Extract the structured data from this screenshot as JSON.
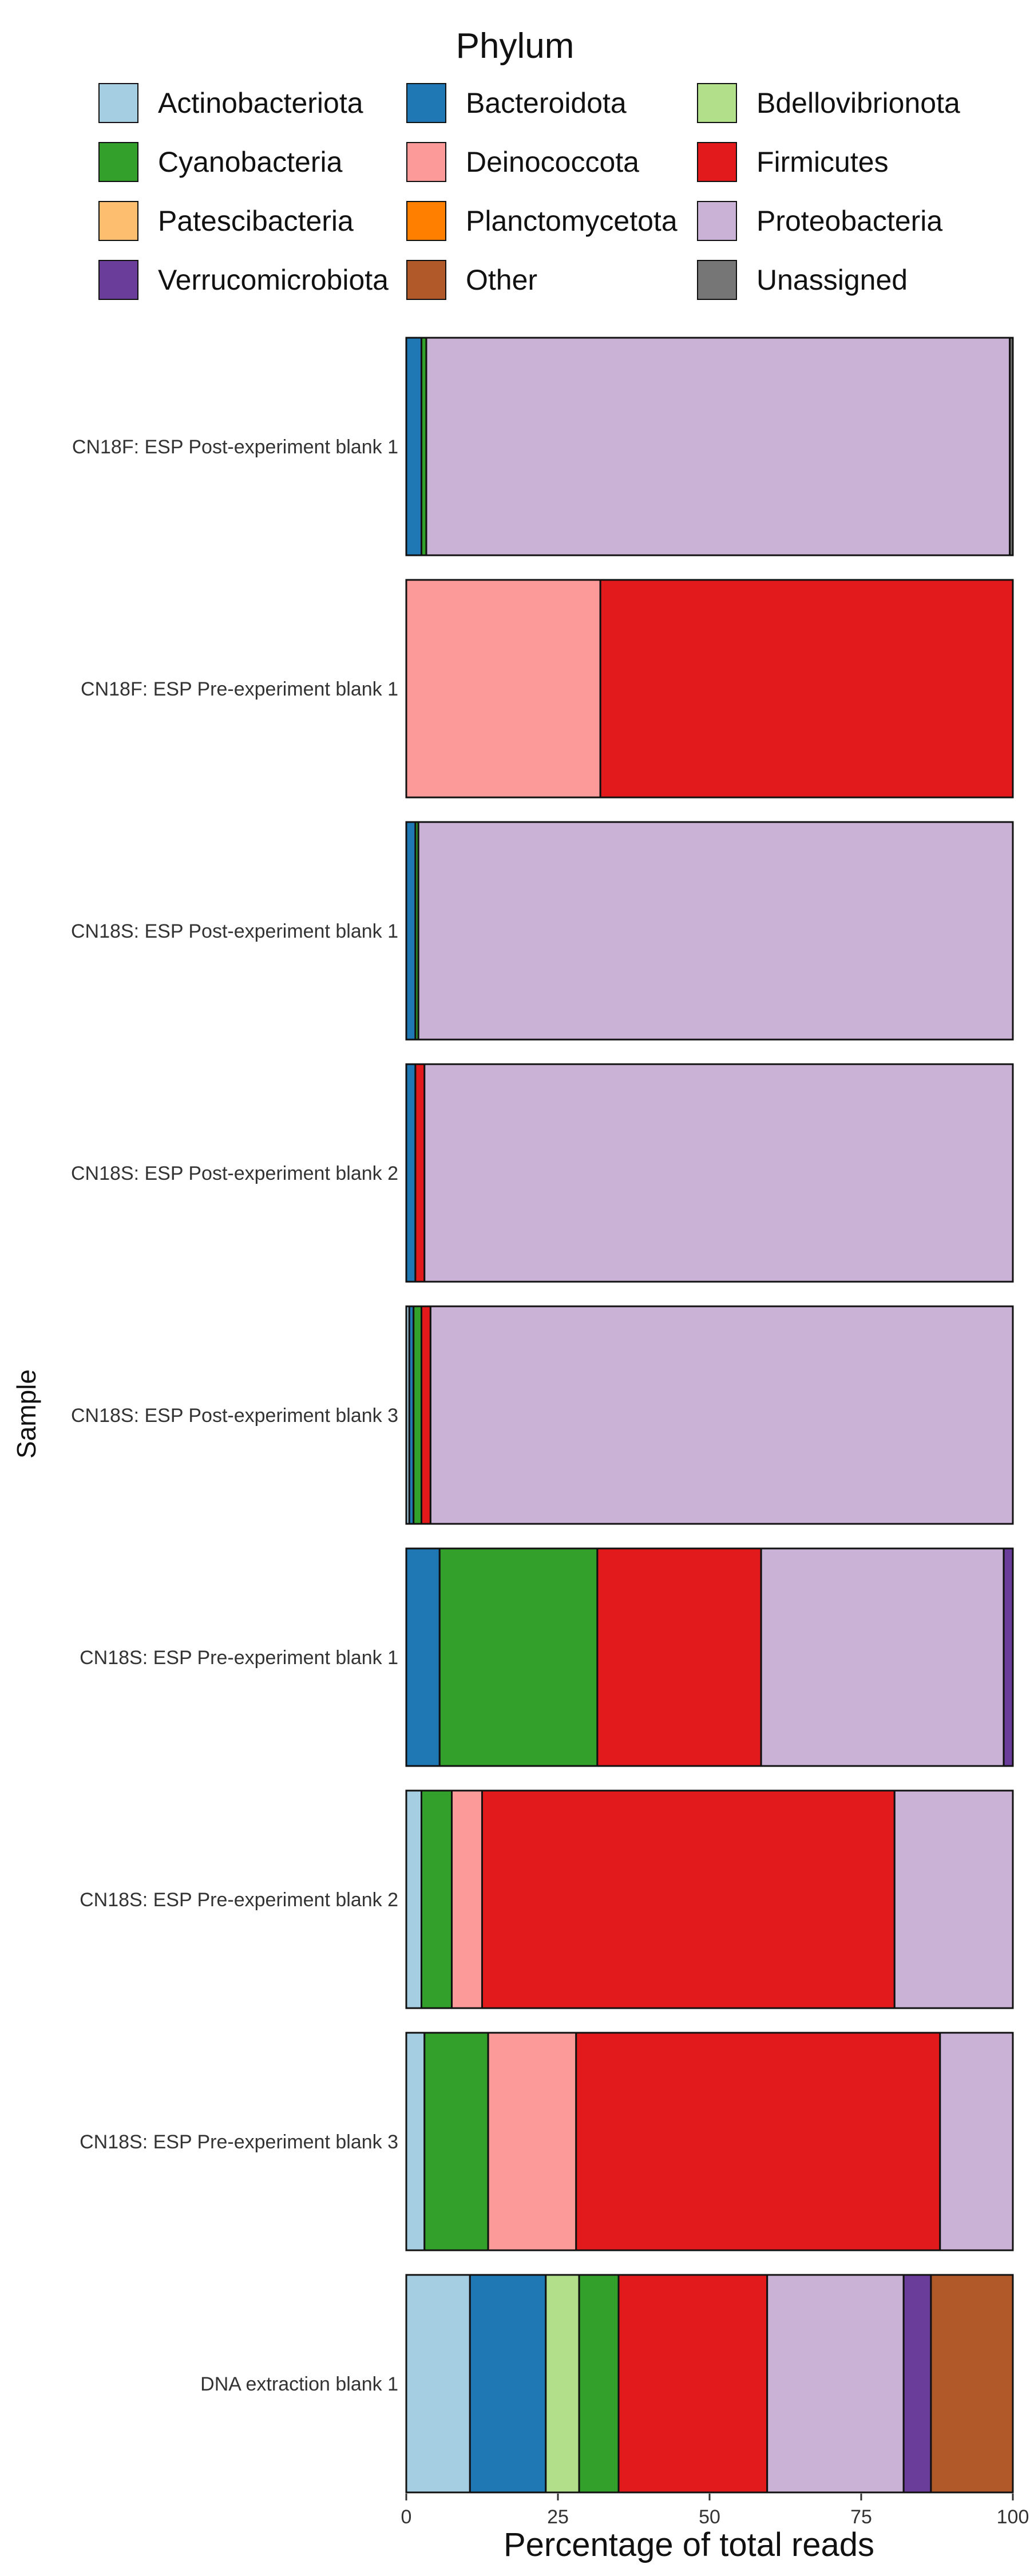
{
  "chart_data": {
    "type": "bar",
    "orientation": "horizontal",
    "stacked": true,
    "xlabel": "Percentage of total reads",
    "ylabel": "Sample",
    "xlim": [
      0,
      100
    ],
    "xticks": [
      "0",
      "25",
      "50",
      "75",
      "100"
    ],
    "legend_title": "Phylum",
    "legend_position": "top",
    "grid": false,
    "categories": [
      "CN18F: ESP Post-experiment blank 1",
      "CN18F: ESP Pre-experiment blank 1",
      "CN18S: ESP Post-experiment blank 1",
      "CN18S: ESP Post-experiment blank 2",
      "CN18S: ESP Post-experiment blank 3",
      "CN18S: ESP Pre-experiment blank 1",
      "CN18S: ESP Pre-experiment blank 2",
      "CN18S: ESP Pre-experiment blank 3",
      "DNA extraction blank 1"
    ],
    "series": [
      {
        "name": "Actinobacteriota",
        "color": "#a6cee3",
        "values": [
          0,
          0,
          0,
          0,
          0.5,
          0,
          2.5,
          3,
          10.5
        ]
      },
      {
        "name": "Bacteroidota",
        "color": "#1f78b4",
        "values": [
          2.5,
          0,
          1.5,
          1.5,
          0.7,
          5.5,
          0,
          0,
          12.5
        ]
      },
      {
        "name": "Bdellovibrionota",
        "color": "#b2df8a",
        "values": [
          0,
          0,
          0,
          0,
          0,
          0,
          0,
          0,
          5.5
        ]
      },
      {
        "name": "Cyanobacteria",
        "color": "#33a02c",
        "values": [
          0.8,
          0,
          0.5,
          0,
          1.3,
          26,
          5,
          10.5,
          6.5
        ]
      },
      {
        "name": "Deinococcota",
        "color": "#fb9a99",
        "values": [
          0,
          32,
          0,
          0,
          0,
          0,
          5,
          14.5,
          0
        ]
      },
      {
        "name": "Firmicutes",
        "color": "#e31a1c",
        "values": [
          0,
          68,
          0,
          1.5,
          1.5,
          27,
          68,
          60,
          24.5
        ]
      },
      {
        "name": "Patescibacteria",
        "color": "#fdbf6f",
        "values": [
          0,
          0,
          0,
          0,
          0,
          0,
          0,
          0,
          0
        ]
      },
      {
        "name": "Planctomycetota",
        "color": "#ff7f00",
        "values": [
          0,
          0,
          0,
          0,
          0,
          0,
          0,
          0,
          0
        ]
      },
      {
        "name": "Proteobacteria",
        "color": "#cab2d6",
        "values": [
          96.2,
          0,
          98,
          97,
          96,
          40,
          19.5,
          12,
          22.5
        ]
      },
      {
        "name": "Verrucomicrobiota",
        "color": "#6a3d9a",
        "values": [
          0,
          0,
          0,
          0,
          0,
          1.5,
          0,
          0,
          4.5
        ]
      },
      {
        "name": "Other",
        "color": "#b15928",
        "values": [
          0,
          0,
          0,
          0,
          0,
          0,
          0,
          0,
          13.5
        ]
      },
      {
        "name": "Unassigned",
        "color": "#767676",
        "values": [
          0.5,
          0,
          0,
          0,
          0,
          0,
          0,
          0,
          0
        ]
      }
    ]
  }
}
